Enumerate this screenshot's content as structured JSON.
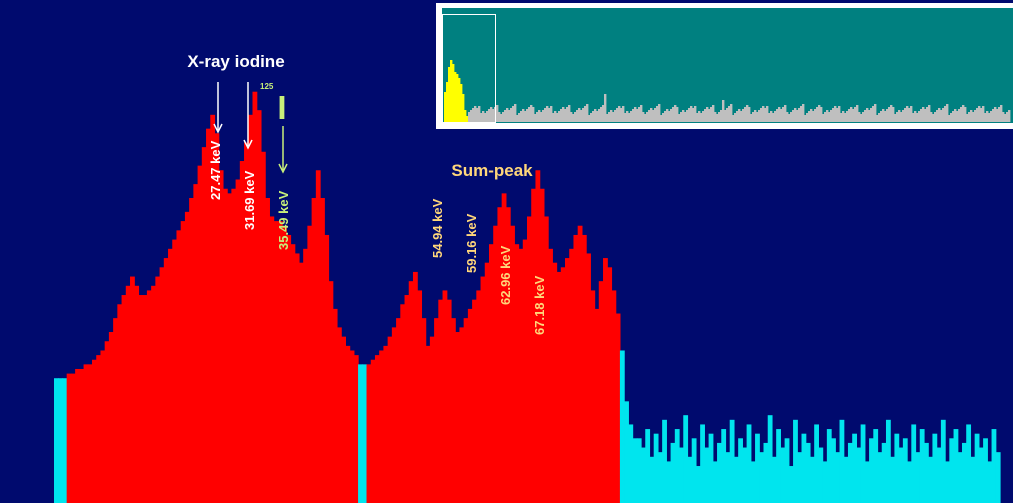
{
  "chart_data": {
    "type": "bar",
    "title": "",
    "xlabel": "",
    "ylabel": "",
    "colors": {
      "background": "#000a6e",
      "roi": "#ff0000",
      "counts": "#00e5ee",
      "xray_annotation": "#ffffff",
      "iodine_annotation": "#c8f07a",
      "sumpeak_annotation": "#ffd77a"
    },
    "values": [
      27,
      27,
      27,
      28,
      28,
      29,
      29,
      30,
      30,
      31,
      32,
      33,
      35,
      37,
      40,
      43,
      45,
      47,
      49,
      47,
      45,
      45,
      46,
      47,
      49,
      51,
      53,
      55,
      57,
      59,
      61,
      63,
      66,
      69,
      73,
      77,
      81,
      84,
      80,
      72,
      68,
      67,
      68,
      70,
      74,
      78,
      84,
      89,
      85,
      76,
      66,
      62,
      61,
      61,
      60,
      58,
      56,
      54,
      52,
      55,
      60,
      66,
      72,
      66,
      58,
      48,
      42,
      38,
      36,
      34,
      33,
      32,
      30,
      30,
      30,
      31,
      32,
      33,
      34,
      36,
      38,
      40,
      43,
      45,
      48,
      50,
      46,
      40,
      34,
      36,
      40,
      44,
      46,
      44,
      40,
      37,
      38,
      40,
      42,
      44,
      46,
      49,
      52,
      56,
      60,
      64,
      67,
      64,
      60,
      56,
      55,
      57,
      62,
      68,
      72,
      68,
      62,
      55,
      52,
      50,
      51,
      53,
      55,
      58,
      60,
      58,
      54,
      46,
      42,
      48,
      53,
      51,
      46,
      41,
      33,
      22,
      17,
      14,
      14,
      12,
      16,
      10,
      15,
      11,
      18,
      9,
      13,
      16,
      12,
      19,
      10,
      14,
      8,
      17,
      12,
      15,
      9,
      13,
      16,
      11,
      18,
      10,
      14,
      12,
      17,
      9,
      15,
      11,
      13,
      19,
      10,
      16,
      12,
      14,
      8,
      18,
      11,
      15,
      13,
      10,
      17,
      12,
      9,
      16,
      14,
      11,
      18,
      10,
      13,
      15,
      12,
      17,
      9,
      14,
      16,
      11,
      13,
      18,
      10,
      15,
      12,
      14,
      9,
      17,
      11,
      16,
      13,
      10,
      15,
      12,
      18,
      9,
      14,
      16,
      11,
      13,
      17,
      10,
      15,
      12,
      14,
      9,
      16,
      11
    ],
    "annotations": [
      {
        "group": "xray",
        "header": "X-ray iodine",
        "peaks": [
          "27.47 keV",
          "31.69 keV"
        ]
      },
      {
        "group": "iodine",
        "element": "I",
        "mass_number": "125",
        "peaks": [
          "35.49 keV"
        ]
      },
      {
        "group": "sumpeak",
        "header": "Sum-peak",
        "peaks": [
          "54.94 keV",
          "59.16 keV",
          "62.96 keV",
          "67.18 keV"
        ]
      }
    ]
  },
  "labels": {
    "xray_header": "X-ray iodine",
    "peak1": "27.47 keV",
    "peak2": "31.69 keV",
    "isotope_mass": "125",
    "isotope_symbol": "I",
    "peak3": "35.49 keV",
    "sumpeak_header": "Sum-peak",
    "peak4": "54.94 keV",
    "peak5": "59.16 keV",
    "peak6": "62.96 keV",
    "peak7": "67.18 keV"
  },
  "overview": {
    "colors": {
      "background": "#008080",
      "selection": "#ffff00",
      "spectrum": "#bfbfbf"
    }
  }
}
